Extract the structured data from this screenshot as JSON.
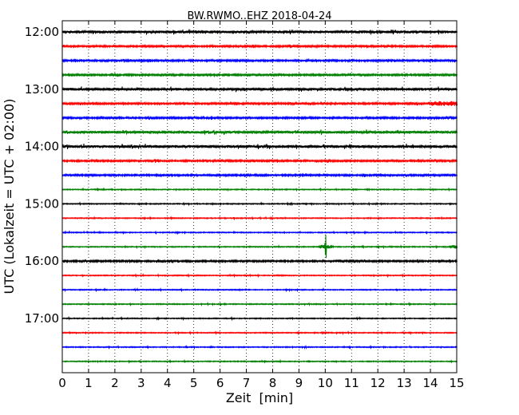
{
  "chart_data": {
    "type": "line",
    "subtype": "helicorder",
    "title": "BW.RWMO..EHZ 2018-04-24",
    "xlabel": "Zeit  [min]",
    "ylabel": "UTC (Lokalzeit = UTC + 02:00)",
    "xlim": [
      0,
      15
    ],
    "x_ticks": [
      "0",
      "1",
      "2",
      "3",
      "4",
      "5",
      "6",
      "7",
      "8",
      "9",
      "10",
      "11",
      "12",
      "13",
      "14",
      "15"
    ],
    "y_tick_labels": [
      "12:00",
      "13:00",
      "14:00",
      "15:00",
      "16:00",
      "17:00"
    ],
    "grid": "vertical dotted",
    "colors": [
      "#000000",
      "#ff0000",
      "#0000ff",
      "#008000"
    ],
    "traces_start": [
      "12:00",
      "12:15",
      "12:30",
      "12:45",
      "13:00",
      "13:15",
      "13:30",
      "13:45",
      "14:00",
      "14:15",
      "14:30",
      "14:45",
      "15:00",
      "15:15",
      "15:30",
      "15:45",
      "16:00",
      "16:15",
      "16:30",
      "16:45",
      "17:00",
      "17:15",
      "17:30",
      "17:45"
    ],
    "trace_activity": [
      "high",
      "medium",
      "medium",
      "medium",
      "high",
      "medium",
      "medium",
      "high",
      "high",
      "medium",
      "medium",
      "low",
      "low",
      "low",
      "low",
      "low",
      "medium",
      "low",
      "low",
      "low",
      "low",
      "low",
      "low",
      "low"
    ],
    "events": [
      {
        "trace": "13:15",
        "x_start": 14.0,
        "x_end": 15.0,
        "strength": "moderate"
      },
      {
        "trace": "15:45",
        "x_start": 10.0,
        "x_end": 10.0,
        "strength": "spike"
      },
      {
        "trace": "15:45",
        "x_start": 14.7,
        "x_end": 15.0,
        "strength": "small"
      }
    ]
  }
}
